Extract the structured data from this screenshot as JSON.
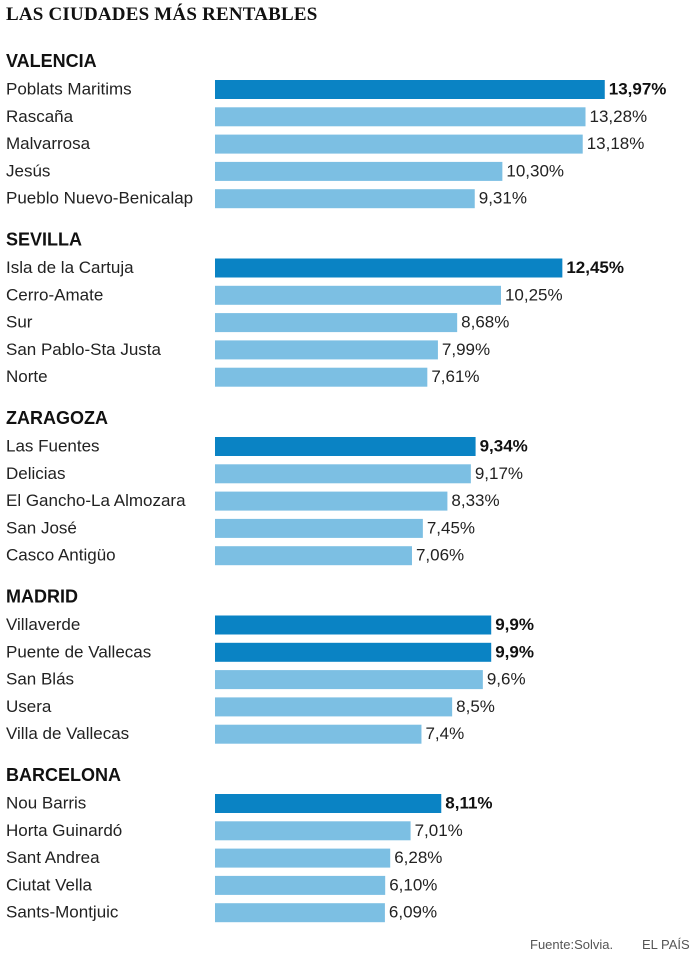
{
  "title": "LAS CIUDADES MÁS RENTABLES",
  "footer": {
    "source": "Fuente:Solvia.",
    "brand": "EL PAÍS"
  },
  "colors": {
    "highlight": "#0a83c4",
    "normal": "#7cbfe3",
    "text": "#222222"
  },
  "chart_data": {
    "type": "bar",
    "orientation": "horizontal",
    "title": "LAS CIUDADES MÁS RENTABLES",
    "groups": [
      {
        "name": "VALENCIA",
        "items": [
          {
            "label": "Poblats Maritims",
            "value": 13.97,
            "display": "13,97%",
            "highlight": true
          },
          {
            "label": "Rascaña",
            "value": 13.28,
            "display": "13,28%",
            "highlight": false
          },
          {
            "label": "Malvarrosa",
            "value": 13.18,
            "display": "13,18%",
            "highlight": false
          },
          {
            "label": "Jesús",
            "value": 10.3,
            "display": "10,30%",
            "highlight": false
          },
          {
            "label": "Pueblo Nuevo-Benicalap",
            "value": 9.31,
            "display": "9,31%",
            "highlight": false
          }
        ]
      },
      {
        "name": "SEVILLA",
        "items": [
          {
            "label": "Isla de la Cartuja",
            "value": 12.45,
            "display": "12,45%",
            "highlight": true
          },
          {
            "label": "Cerro-Amate",
            "value": 10.25,
            "display": "10,25%",
            "highlight": false
          },
          {
            "label": "Sur",
            "value": 8.68,
            "display": "8,68%",
            "highlight": false
          },
          {
            "label": "San Pablo-Sta Justa",
            "value": 7.99,
            "display": "7,99%",
            "highlight": false
          },
          {
            "label": "Norte",
            "value": 7.61,
            "display": "7,61%",
            "highlight": false
          }
        ]
      },
      {
        "name": "ZARAGOZA",
        "items": [
          {
            "label": "Las Fuentes",
            "value": 9.34,
            "display": "9,34%",
            "highlight": true
          },
          {
            "label": "Delicias",
            "value": 9.17,
            "display": "9,17%",
            "highlight": false
          },
          {
            "label": "El Gancho-La Almozara",
            "value": 8.33,
            "display": "8,33%",
            "highlight": false
          },
          {
            "label": "San José",
            "value": 7.45,
            "display": "7,45%",
            "highlight": false
          },
          {
            "label": "Casco Antigüo",
            "value": 7.06,
            "display": "7,06%",
            "highlight": false
          }
        ]
      },
      {
        "name": "MADRID",
        "items": [
          {
            "label": "Villaverde",
            "value": 9.9,
            "display": "9,9%",
            "highlight": true
          },
          {
            "label": "Puente de Vallecas",
            "value": 9.9,
            "display": "9,9%",
            "highlight": true
          },
          {
            "label": "San Blás",
            "value": 9.6,
            "display": "9,6%",
            "highlight": false
          },
          {
            "label": "Usera",
            "value": 8.5,
            "display": "8,5%",
            "highlight": false
          },
          {
            "label": "Villa de Vallecas",
            "value": 7.4,
            "display": "7,4%",
            "highlight": false
          }
        ]
      },
      {
        "name": "BARCELONA",
        "items": [
          {
            "label": "Nou Barris",
            "value": 8.11,
            "display": "8,11%",
            "highlight": true
          },
          {
            "label": "Horta Guinardó",
            "value": 7.01,
            "display": "7,01%",
            "highlight": false
          },
          {
            "label": "Sant Andrea",
            "value": 6.28,
            "display": "6,28%",
            "highlight": false
          },
          {
            "label": "Ciutat Vella",
            "value": 6.1,
            "display": "6,10%",
            "highlight": false
          },
          {
            "label": "Sants-Montjuic",
            "value": 6.09,
            "display": "6,09%",
            "highlight": false
          }
        ]
      }
    ]
  }
}
